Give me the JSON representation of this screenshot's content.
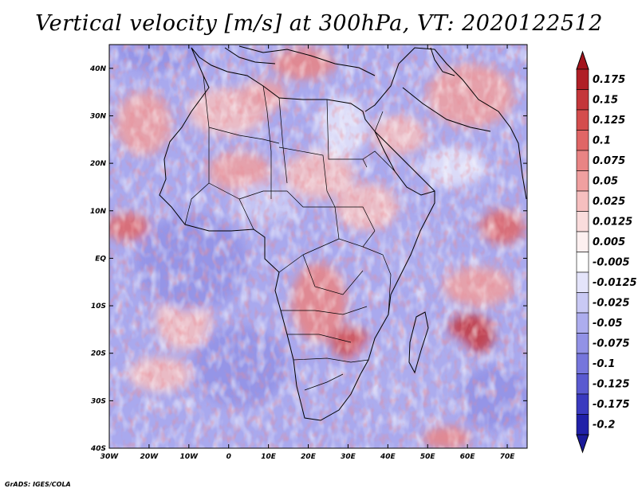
{
  "title": "Vertical velocity [m/s] at 300hPa, VT: 2020122512",
  "credit": "GrADS: IGES/COLA",
  "map": {
    "lon_range": [
      -30,
      75
    ],
    "lat_range": [
      -40,
      45
    ],
    "lon_ticks": [
      {
        "value": -30,
        "label": "30W"
      },
      {
        "value": -20,
        "label": "20W"
      },
      {
        "value": -10,
        "label": "10W"
      },
      {
        "value": 0,
        "label": "0"
      },
      {
        "value": 10,
        "label": "10E"
      },
      {
        "value": 20,
        "label": "20E"
      },
      {
        "value": 30,
        "label": "30E"
      },
      {
        "value": 40,
        "label": "40E"
      },
      {
        "value": 50,
        "label": "50E"
      },
      {
        "value": 60,
        "label": "60E"
      },
      {
        "value": 70,
        "label": "70E"
      }
    ],
    "lat_ticks": [
      {
        "value": 40,
        "label": "40N"
      },
      {
        "value": 30,
        "label": "30N"
      },
      {
        "value": 20,
        "label": "20N"
      },
      {
        "value": 10,
        "label": "10N"
      },
      {
        "value": 0,
        "label": "EQ"
      },
      {
        "value": -10,
        "label": "10S"
      },
      {
        "value": -20,
        "label": "20S"
      },
      {
        "value": -30,
        "label": "30S"
      },
      {
        "value": -40,
        "label": "40S"
      }
    ]
  },
  "colorbar": {
    "levels": [
      {
        "label": "0.175",
        "color": "#b01f26"
      },
      {
        "label": "0.15",
        "color": "#c4363a"
      },
      {
        "label": "0.125",
        "color": "#d44d4d"
      },
      {
        "label": "0.1",
        "color": "#e06666"
      },
      {
        "label": "0.075",
        "color": "#e98484"
      },
      {
        "label": "0.05",
        "color": "#f0a0a0"
      },
      {
        "label": "0.025",
        "color": "#f6bfbf"
      },
      {
        "label": "0.0125",
        "color": "#fadcdc"
      },
      {
        "label": "0.005",
        "color": "#fdf0f0"
      },
      {
        "label": "-0.005",
        "color": "#ffffff"
      },
      {
        "label": "-0.0125",
        "color": "#e4e4fa"
      },
      {
        "label": "-0.025",
        "color": "#c9c9f4"
      },
      {
        "label": "-0.05",
        "color": "#adadee"
      },
      {
        "label": "-0.075",
        "color": "#9292e6"
      },
      {
        "label": "-0.1",
        "color": "#7676dc"
      },
      {
        "label": "-0.125",
        "color": "#5a5ad0"
      },
      {
        "label": "-0.175",
        "color": "#3a3abf"
      },
      {
        "label": "-0.2",
        "color": "#2020a8"
      }
    ],
    "top_arrow_color": "#a3141c",
    "bottom_arrow_color": "#1a1a9a"
  }
}
